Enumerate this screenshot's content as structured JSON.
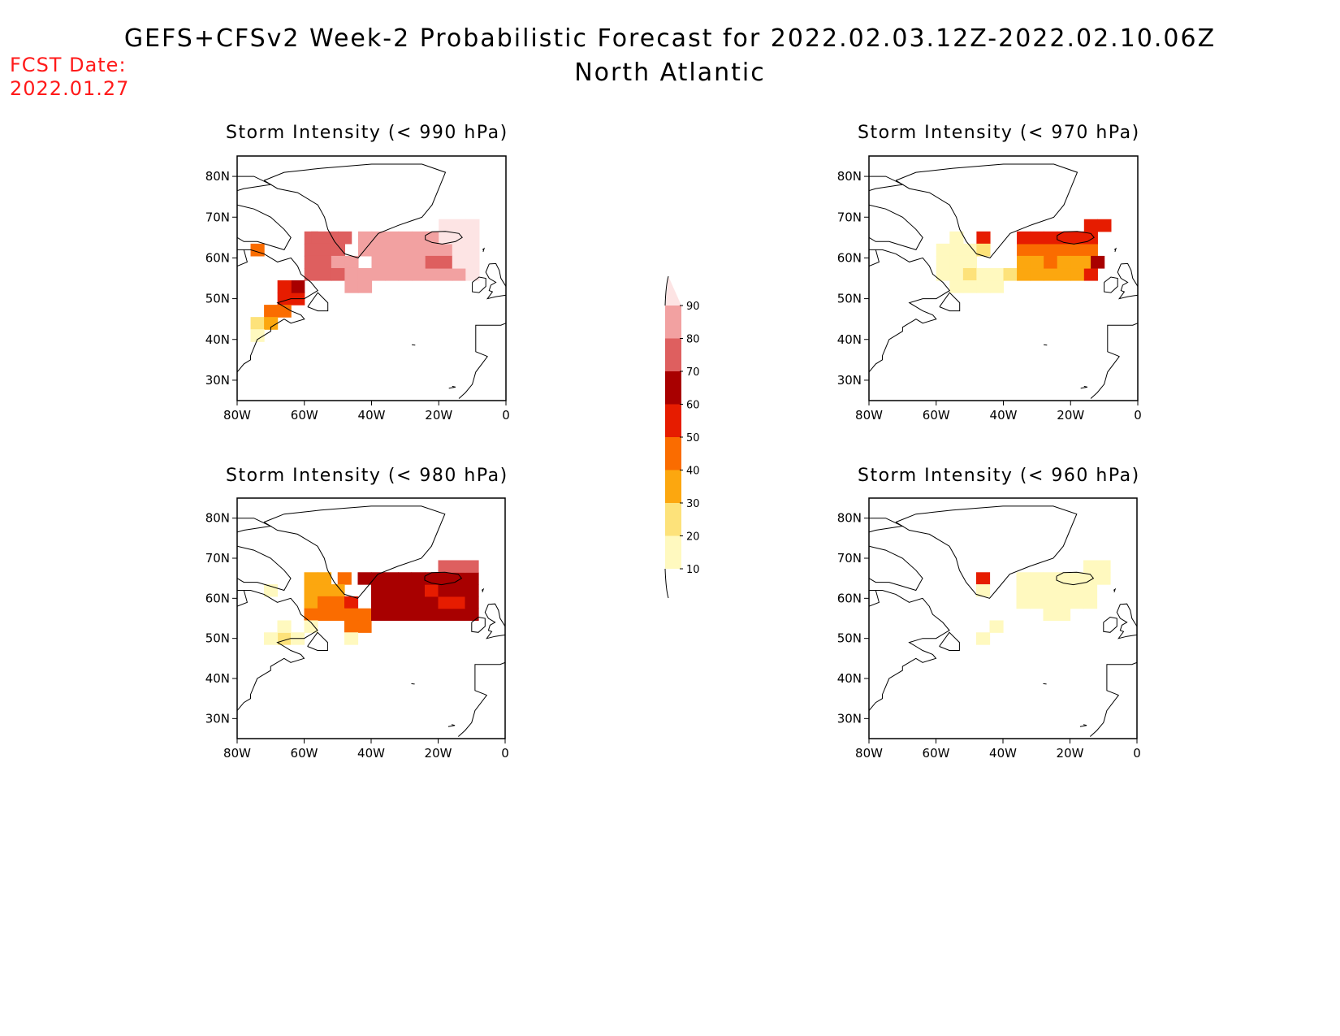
{
  "header": {
    "title": "GEFS+CFSv2 Week-2 Probabilistic Forecast for 2022.02.03.12Z-2022.02.10.06Z",
    "subtitle": "North Atlantic",
    "fcst_label": "FCST Date:",
    "fcst_date": "2022.01.27"
  },
  "axes": {
    "lat_labels": [
      "80N",
      "70N",
      "60N",
      "50N",
      "40N",
      "30N"
    ],
    "lon_labels": [
      "80W",
      "60W",
      "40W",
      "20W",
      "0"
    ],
    "lat_values": [
      80,
      70,
      60,
      50,
      40,
      30
    ],
    "lon_values": [
      -80,
      -60,
      -40,
      -20,
      0
    ],
    "lat_range": [
      25,
      85
    ],
    "lon_range": [
      -80,
      0
    ]
  },
  "colorbar": {
    "levels": [
      "10",
      "20",
      "30",
      "40",
      "50",
      "60",
      "70",
      "80",
      "90"
    ],
    "colors": [
      "#fff9bf",
      "#fde27a",
      "#fca70f",
      "#fa6c00",
      "#e61c00",
      "#a80000",
      "#de5f5f",
      "#f2a1a1",
      "#fde4e4"
    ]
  },
  "panels": [
    {
      "title": "Storm Intensity (< 990 hPa)",
      "cells": [
        [
          -58,
          65,
          6
        ],
        [
          -56,
          65,
          6
        ],
        [
          -52,
          65,
          6
        ],
        [
          -48,
          65,
          6
        ],
        [
          -58,
          62,
          6
        ],
        [
          -54,
          62,
          6
        ],
        [
          -50,
          62,
          6
        ],
        [
          -58,
          59,
          6
        ],
        [
          -54,
          59,
          6
        ],
        [
          -50,
          59,
          7
        ],
        [
          -46,
          59,
          7
        ],
        [
          -58,
          56,
          6
        ],
        [
          -54,
          56,
          6
        ],
        [
          -50,
          56,
          6
        ],
        [
          -46,
          56,
          7
        ],
        [
          -42,
          56,
          7
        ],
        [
          -38,
          56,
          7
        ],
        [
          -34,
          56,
          7
        ],
        [
          -30,
          56,
          7
        ],
        [
          -26,
          56,
          7
        ],
        [
          -22,
          56,
          7
        ],
        [
          -18,
          56,
          7
        ],
        [
          -14,
          56,
          7
        ],
        [
          -10,
          56,
          8
        ],
        [
          -42,
          62,
          7
        ],
        [
          -38,
          62,
          7
        ],
        [
          -34,
          62,
          7
        ],
        [
          -30,
          62,
          7
        ],
        [
          -26,
          62,
          7
        ],
        [
          -22,
          62,
          7
        ],
        [
          -18,
          62,
          7
        ],
        [
          -14,
          62,
          8
        ],
        [
          -10,
          62,
          8
        ],
        [
          -38,
          59,
          7
        ],
        [
          -34,
          59,
          7
        ],
        [
          -30,
          59,
          7
        ],
        [
          -26,
          59,
          7
        ],
        [
          -22,
          59,
          6
        ],
        [
          -18,
          59,
          6
        ],
        [
          -14,
          59,
          8
        ],
        [
          -10,
          59,
          8
        ],
        [
          -38,
          65,
          7
        ],
        [
          -34,
          65,
          7
        ],
        [
          -30,
          65,
          7
        ],
        [
          -26,
          65,
          7
        ],
        [
          -22,
          65,
          7
        ],
        [
          -18,
          65,
          8
        ],
        [
          -14,
          65,
          8
        ],
        [
          -10,
          65,
          8
        ],
        [
          -42,
          65,
          7
        ],
        [
          -46,
          53,
          7
        ],
        [
          -42,
          53,
          7
        ],
        [
          -18,
          68,
          8
        ],
        [
          -14,
          68,
          8
        ],
        [
          -10,
          68,
          8
        ],
        [
          -74,
          62,
          3
        ],
        [
          -66,
          50,
          4
        ],
        [
          -62,
          50,
          4
        ],
        [
          -70,
          47,
          3
        ],
        [
          -66,
          47,
          3
        ],
        [
          -74,
          44,
          1
        ],
        [
          -70,
          44,
          2
        ],
        [
          -74,
          41,
          0
        ],
        [
          -62,
          53,
          5
        ],
        [
          -66,
          53,
          4
        ]
      ]
    },
    {
      "title": "Storm Intensity (< 970 hPa)",
      "cells": [
        [
          -58,
          62,
          0
        ],
        [
          -54,
          62,
          0
        ],
        [
          -50,
          62,
          0
        ],
        [
          -58,
          59,
          0
        ],
        [
          -54,
          59,
          0
        ],
        [
          -50,
          59,
          0
        ],
        [
          -58,
          56,
          0
        ],
        [
          -54,
          56,
          0
        ],
        [
          -50,
          56,
          1
        ],
        [
          -46,
          56,
          0
        ],
        [
          -42,
          56,
          0
        ],
        [
          -54,
          53,
          0
        ],
        [
          -50,
          53,
          0
        ],
        [
          -46,
          53,
          0
        ],
        [
          -42,
          53,
          0
        ],
        [
          -54,
          65,
          0
        ],
        [
          -46,
          65,
          4
        ],
        [
          -46,
          62,
          1
        ],
        [
          -38,
          56,
          1
        ],
        [
          -34,
          56,
          2
        ],
        [
          -30,
          56,
          2
        ],
        [
          -26,
          56,
          2
        ],
        [
          -22,
          56,
          2
        ],
        [
          -18,
          56,
          2
        ],
        [
          -14,
          56,
          4
        ],
        [
          -34,
          62,
          3
        ],
        [
          -30,
          62,
          3
        ],
        [
          -26,
          62,
          3
        ],
        [
          -22,
          62,
          3
        ],
        [
          -18,
          62,
          3
        ],
        [
          -14,
          62,
          3
        ],
        [
          -34,
          59,
          2
        ],
        [
          -30,
          59,
          2
        ],
        [
          -26,
          59,
          3
        ],
        [
          -22,
          59,
          2
        ],
        [
          -18,
          59,
          2
        ],
        [
          -14,
          59,
          2
        ],
        [
          -34,
          65,
          4
        ],
        [
          -30,
          65,
          4
        ],
        [
          -26,
          65,
          4
        ],
        [
          -22,
          65,
          4
        ],
        [
          -18,
          65,
          4
        ],
        [
          -14,
          65,
          4
        ],
        [
          -14,
          68,
          4
        ],
        [
          -10,
          68,
          4
        ],
        [
          -12,
          59,
          5
        ]
      ]
    },
    {
      "title": "Storm Intensity (< 980 hPa)",
      "cells": [
        [
          -58,
          65,
          2
        ],
        [
          -54,
          65,
          2
        ],
        [
          -48,
          65,
          3
        ],
        [
          -58,
          62,
          2
        ],
        [
          -54,
          62,
          2
        ],
        [
          -50,
          62,
          2
        ],
        [
          -58,
          59,
          2
        ],
        [
          -54,
          59,
          3
        ],
        [
          -50,
          59,
          3
        ],
        [
          -46,
          59,
          4
        ],
        [
          -58,
          56,
          3
        ],
        [
          -54,
          56,
          3
        ],
        [
          -50,
          56,
          3
        ],
        [
          -46,
          56,
          3
        ],
        [
          -42,
          56,
          3
        ],
        [
          -46,
          53,
          3
        ],
        [
          -42,
          53,
          3
        ],
        [
          -38,
          56,
          5
        ],
        [
          -34,
          56,
          5
        ],
        [
          -30,
          56,
          5
        ],
        [
          -26,
          56,
          5
        ],
        [
          -22,
          56,
          5
        ],
        [
          -18,
          56,
          5
        ],
        [
          -14,
          56,
          5
        ],
        [
          -10,
          56,
          5
        ],
        [
          -38,
          59,
          5
        ],
        [
          -34,
          59,
          5
        ],
        [
          -30,
          59,
          5
        ],
        [
          -26,
          59,
          5
        ],
        [
          -22,
          59,
          5
        ],
        [
          -18,
          59,
          4
        ],
        [
          -14,
          59,
          4
        ],
        [
          -10,
          59,
          5
        ],
        [
          -38,
          62,
          5
        ],
        [
          -34,
          62,
          5
        ],
        [
          -30,
          62,
          5
        ],
        [
          -26,
          62,
          5
        ],
        [
          -22,
          62,
          4
        ],
        [
          -18,
          62,
          5
        ],
        [
          -14,
          62,
          5
        ],
        [
          -10,
          62,
          5
        ],
        [
          -38,
          65,
          5
        ],
        [
          -34,
          65,
          5
        ],
        [
          -30,
          65,
          5
        ],
        [
          -26,
          65,
          5
        ],
        [
          -22,
          65,
          5
        ],
        [
          -18,
          65,
          5
        ],
        [
          -14,
          65,
          5
        ],
        [
          -10,
          65,
          5
        ],
        [
          -42,
          65,
          5
        ],
        [
          -18,
          68,
          6
        ],
        [
          -14,
          68,
          6
        ],
        [
          -10,
          68,
          6
        ],
        [
          -70,
          62,
          0
        ],
        [
          -66,
          50,
          1
        ],
        [
          -62,
          50,
          0
        ],
        [
          -70,
          50,
          0
        ],
        [
          -66,
          53,
          0
        ],
        [
          -58,
          53,
          0
        ],
        [
          -46,
          50,
          0
        ]
      ]
    },
    {
      "title": "Storm Intensity (< 960 hPa)",
      "cells": [
        [
          -46,
          65,
          4
        ],
        [
          -46,
          62,
          0
        ],
        [
          -34,
          62,
          0
        ],
        [
          -30,
          62,
          0
        ],
        [
          -26,
          62,
          0
        ],
        [
          -22,
          62,
          0
        ],
        [
          -18,
          62,
          0
        ],
        [
          -14,
          62,
          0
        ],
        [
          -34,
          59,
          0
        ],
        [
          -30,
          59,
          0
        ],
        [
          -26,
          59,
          0
        ],
        [
          -22,
          59,
          0
        ],
        [
          -18,
          59,
          0
        ],
        [
          -14,
          59,
          0
        ],
        [
          -34,
          65,
          0
        ],
        [
          -30,
          65,
          0
        ],
        [
          -26,
          65,
          0
        ],
        [
          -22,
          65,
          0
        ],
        [
          -18,
          65,
          0
        ],
        [
          -14,
          65,
          0
        ],
        [
          -10,
          65,
          0
        ],
        [
          -14,
          68,
          0
        ],
        [
          -10,
          68,
          0
        ],
        [
          -26,
          56,
          0
        ],
        [
          -22,
          56,
          0
        ],
        [
          -42,
          53,
          0
        ],
        [
          -46,
          50,
          0
        ]
      ]
    }
  ]
}
